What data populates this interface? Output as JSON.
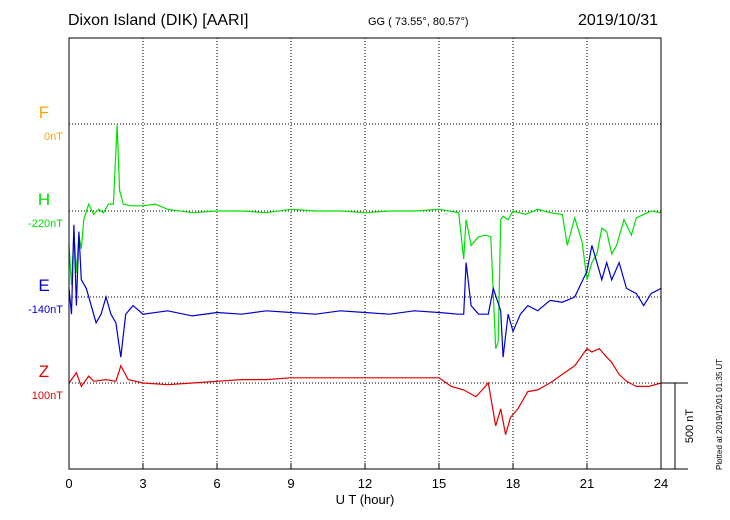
{
  "header": {
    "station": "Dixon Island (DIK)  [AARI]",
    "coords": "GG ( 73.55°,  80.57°)",
    "date": "2019/10/31"
  },
  "plotted_note": "Plotted at 2019/12/01 01:35 UT",
  "chart_data": {
    "type": "line",
    "xlabel": "U T (hour)",
    "xlim": [
      0,
      24
    ],
    "xticks": [
      "0",
      "3",
      "6",
      "9",
      "12",
      "15",
      "18",
      "21",
      "24"
    ],
    "grid": true,
    "scale_bar": {
      "label": "500 nT",
      "value": 500
    },
    "series": [
      {
        "name": "F",
        "baseline_label": "0nT",
        "color": "#ffa500",
        "x": [],
        "values": []
      },
      {
        "name": "H",
        "baseline_label": "-220nT",
        "color": "#00e000",
        "x": [
          0,
          0.1,
          0.2,
          0.3,
          0.4,
          0.5,
          0.6,
          0.8,
          1,
          1.2,
          1.4,
          1.6,
          1.8,
          1.95,
          2.05,
          2.2,
          2.5,
          3,
          3.5,
          4,
          5,
          6,
          7,
          8,
          9,
          10,
          11,
          12,
          13,
          14,
          15,
          15.8,
          16,
          16.1,
          16.3,
          16.6,
          16.9,
          17.1,
          17.3,
          17.4,
          17.5,
          17.6,
          17.8,
          18,
          18.5,
          19,
          19.5,
          20,
          20.2,
          20.5,
          20.8,
          21,
          21.2,
          21.4,
          21.6,
          21.8,
          22,
          22.2,
          22.5,
          22.8,
          23,
          23.3,
          23.6,
          24
        ],
        "values": [
          -200,
          -430,
          -120,
          -360,
          -140,
          -220,
          -50,
          40,
          -20,
          10,
          -10,
          40,
          40,
          500,
          120,
          40,
          30,
          30,
          40,
          10,
          -10,
          0,
          0,
          -10,
          10,
          0,
          0,
          -10,
          0,
          0,
          10,
          -10,
          -280,
          -50,
          -200,
          -150,
          -140,
          -150,
          -800,
          -760,
          -50,
          -30,
          -50,
          0,
          -20,
          10,
          -10,
          -20,
          -200,
          -40,
          -180,
          -400,
          -300,
          -250,
          -100,
          -120,
          -250,
          -200,
          -50,
          -140,
          -40,
          -20,
          0,
          -10
        ]
      },
      {
        "name": "E",
        "baseline_label": "-140nT",
        "color": "#0000d0",
        "x": [
          0,
          0.1,
          0.2,
          0.3,
          0.4,
          0.5,
          0.7,
          0.9,
          1.1,
          1.3,
          1.5,
          1.7,
          1.9,
          2,
          2.1,
          2.3,
          2.6,
          3,
          4,
          5,
          6,
          7,
          8,
          9,
          10,
          11,
          12,
          13,
          14,
          15,
          15.8,
          16,
          16.1,
          16.3,
          16.6,
          17,
          17.2,
          17.5,
          17.6,
          17.8,
          18,
          18.3,
          18.6,
          19,
          19.5,
          20,
          20.5,
          21,
          21.2,
          21.4,
          21.6,
          21.8,
          22,
          22.3,
          22.6,
          23,
          23.3,
          23.6,
          24
        ],
        "values": [
          50,
          -100,
          420,
          -50,
          380,
          100,
          50,
          -50,
          -150,
          -100,
          0,
          -100,
          -150,
          -250,
          -350,
          -100,
          -50,
          -100,
          -80,
          -110,
          -90,
          -100,
          -80,
          -90,
          -100,
          -80,
          -90,
          -100,
          -80,
          -90,
          -100,
          -100,
          200,
          -50,
          -100,
          -100,
          50,
          -80,
          -350,
          -100,
          -200,
          -100,
          -50,
          -80,
          -20,
          -30,
          0,
          150,
          300,
          200,
          100,
          200,
          100,
          200,
          50,
          20,
          -50,
          20,
          50
        ]
      },
      {
        "name": "Z",
        "baseline_label": "100nT",
        "color": "#e00000",
        "x": [
          0,
          0.3,
          0.5,
          0.8,
          1,
          1.5,
          1.9,
          2.1,
          2.4,
          3,
          4,
          5,
          6,
          7,
          8,
          9,
          10,
          11,
          12,
          13,
          14,
          15,
          15.5,
          16,
          16.5,
          17,
          17.3,
          17.5,
          17.7,
          17.9,
          18.2,
          18.6,
          19,
          19.5,
          20,
          20.5,
          21,
          21.2,
          21.5,
          21.8,
          22,
          22.3,
          22.6,
          23,
          23.5,
          24
        ],
        "values": [
          0,
          60,
          -20,
          40,
          10,
          20,
          10,
          100,
          20,
          0,
          -10,
          0,
          10,
          20,
          20,
          30,
          30,
          30,
          30,
          30,
          30,
          30,
          -20,
          -40,
          -80,
          0,
          -250,
          -150,
          -300,
          -200,
          -150,
          -50,
          -40,
          0,
          50,
          100,
          200,
          180,
          200,
          150,
          120,
          50,
          10,
          -20,
          -20,
          0
        ]
      }
    ]
  }
}
